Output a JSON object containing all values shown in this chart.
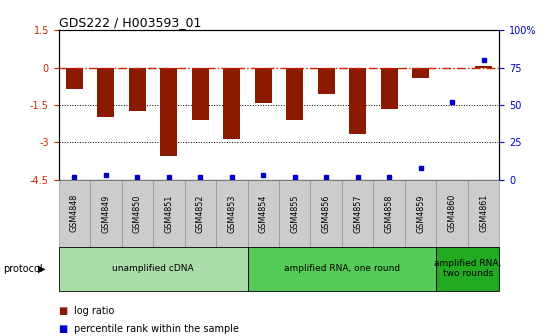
{
  "title": "GDS222 / H003593_01",
  "samples": [
    "GSM4848",
    "GSM4849",
    "GSM4850",
    "GSM4851",
    "GSM4852",
    "GSM4853",
    "GSM4854",
    "GSM4855",
    "GSM4856",
    "GSM4857",
    "GSM4858",
    "GSM4859",
    "GSM4860",
    "GSM4861"
  ],
  "log_ratios": [
    -0.85,
    -2.0,
    -1.75,
    -3.55,
    -2.1,
    -2.85,
    -1.4,
    -2.1,
    -1.05,
    -2.65,
    -1.65,
    -0.4,
    -0.02,
    0.08
  ],
  "percentile_ranks": [
    2,
    3,
    2,
    2,
    2,
    2,
    3,
    2,
    2,
    2,
    2,
    8,
    52,
    80
  ],
  "ylim": [
    -4.5,
    1.5
  ],
  "y_left_ticks": [
    1.5,
    0,
    -1.5,
    -3,
    -4.5
  ],
  "y_right_ticks": [
    100,
    75,
    50,
    25,
    0
  ],
  "bar_color": "#8B1A00",
  "dot_color": "#0000CC",
  "ref_line_color": "#CC2200",
  "dotted_lines": [
    -1.5,
    -3.0
  ],
  "protocol_groups": [
    {
      "label": "unamplified cDNA",
      "start": 0,
      "end": 6,
      "color": "#AADDAA"
    },
    {
      "label": "amplified RNA, one round",
      "start": 6,
      "end": 12,
      "color": "#55CC55"
    },
    {
      "label": "amplified RNA,\ntwo rounds",
      "start": 12,
      "end": 14,
      "color": "#22AA22"
    }
  ],
  "legend_items": [
    {
      "label": "log ratio",
      "color": "#8B1A00"
    },
    {
      "label": "percentile rank within the sample",
      "color": "#0000CC"
    }
  ],
  "protocol_label": "protocol",
  "background_color": "#FFFFFF",
  "tick_label_color_left": "#CC2200",
  "tick_label_color_right": "#0000CC",
  "sample_box_color": "#CCCCCC",
  "sample_box_edge": "#888888"
}
